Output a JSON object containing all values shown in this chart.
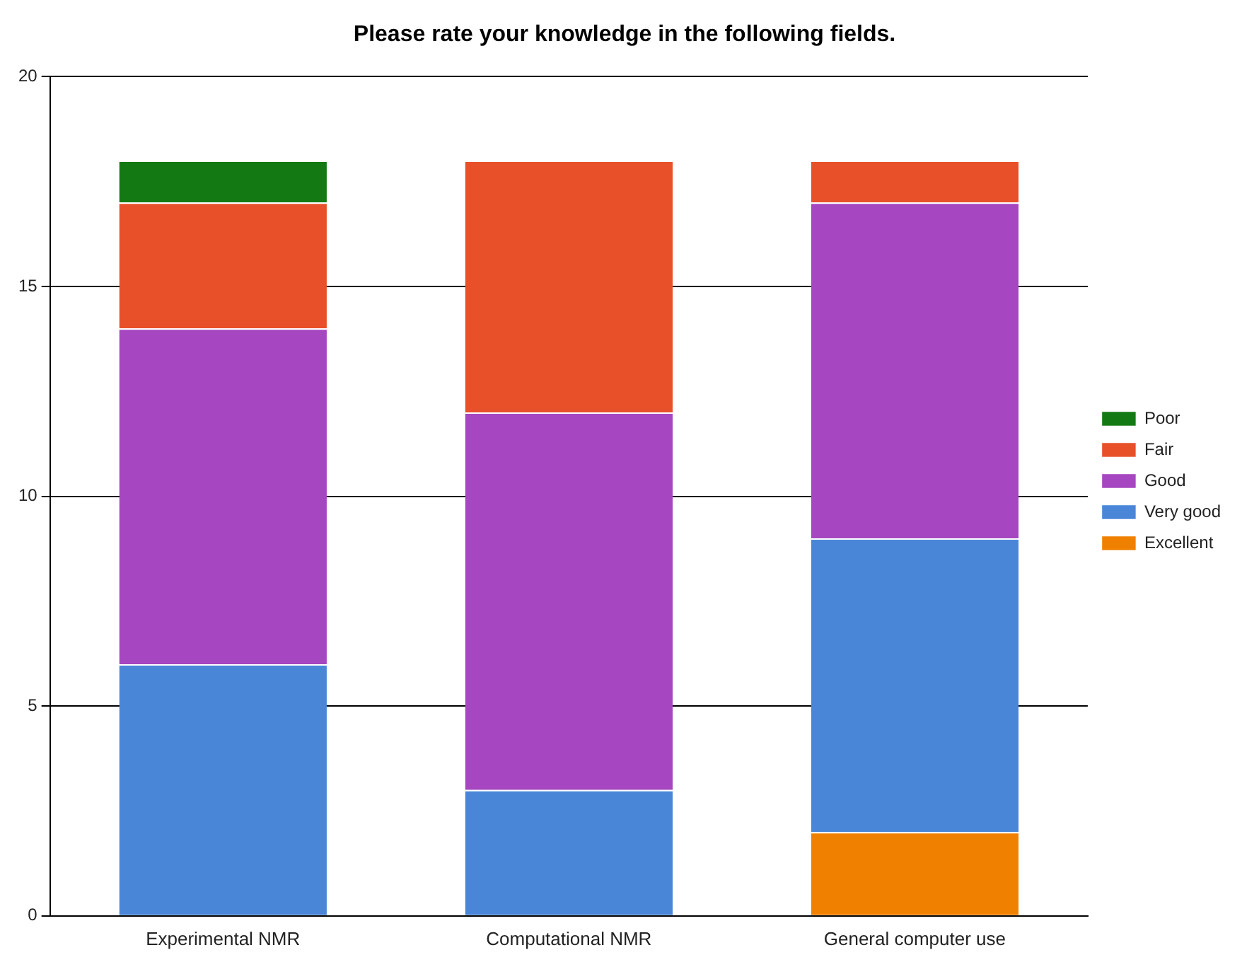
{
  "chart_data": {
    "type": "bar",
    "title": "Please rate your knowledge in the following fields.",
    "categories": [
      "Experimental NMR",
      "Computational NMR",
      "General computer use"
    ],
    "stacked": true,
    "series": [
      {
        "name": "Excellent",
        "color": "#f08000",
        "values": [
          0,
          0,
          2
        ]
      },
      {
        "name": "Very good",
        "color": "#4a86d8",
        "values": [
          6,
          3,
          7
        ]
      },
      {
        "name": "Good",
        "color": "#a646c0",
        "values": [
          8,
          9,
          8
        ]
      },
      {
        "name": "Fair",
        "color": "#e8502a",
        "values": [
          3,
          6,
          1
        ]
      },
      {
        "name": "Poor",
        "color": "#137a13",
        "values": [
          1,
          0,
          0
        ]
      }
    ],
    "ylim": [
      0,
      20
    ],
    "yticks": [
      0,
      5,
      10,
      15,
      20
    ],
    "grid": "y",
    "legend": "right"
  }
}
